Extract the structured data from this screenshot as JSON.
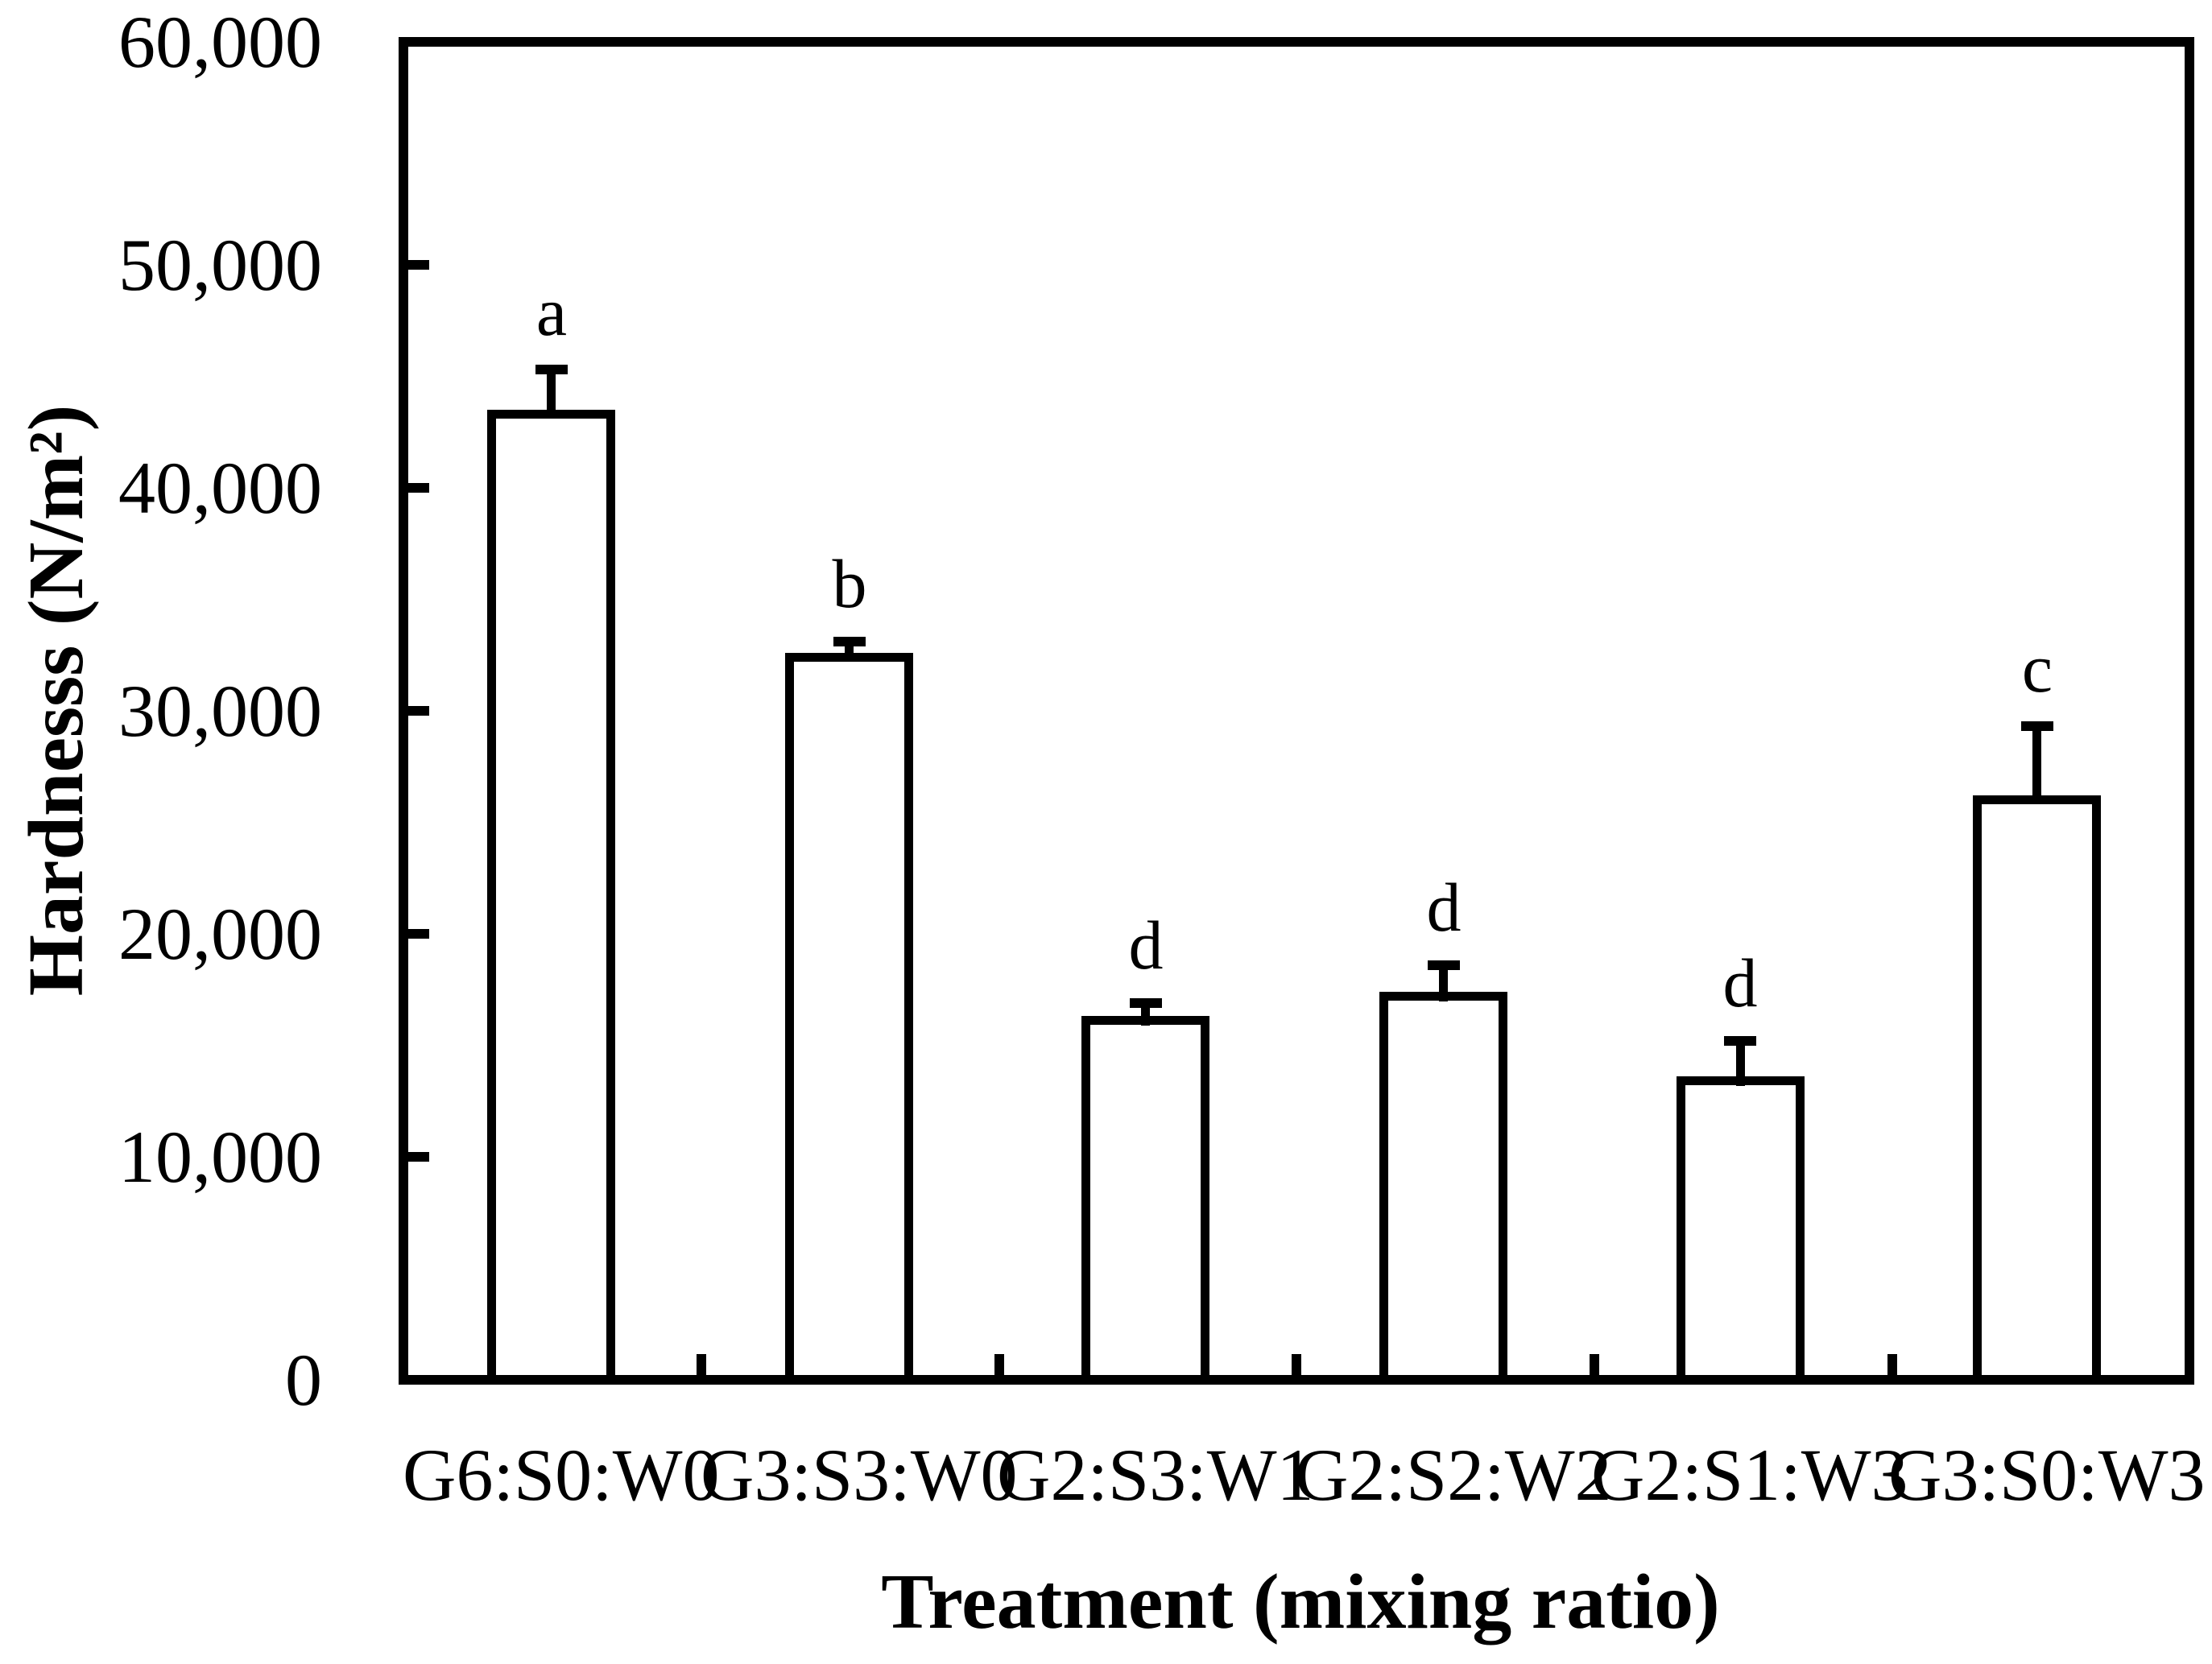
{
  "figure": {
    "background": "#ffffff",
    "ink_color": "#000000"
  },
  "chart_data": {
    "type": "bar",
    "title": "",
    "xlabel": "Treatment (mixing ratio)",
    "ylabel": "Hardnesss (N/m²)",
    "categories": [
      "G6:S0:W0",
      "G3:S3:W0",
      "G2:S3:W1",
      "G2:S2:W2",
      "G2:S1:W3",
      "G3:S0:W3"
    ],
    "values": [
      43300,
      32400,
      16100,
      17200,
      13400,
      26000
    ],
    "error_upper": [
      2000,
      700,
      800,
      1400,
      1800,
      3300
    ],
    "significance_letters": [
      "a",
      "b",
      "d",
      "d",
      "d",
      "c"
    ],
    "ylim": [
      0,
      60000
    ],
    "ytick_step": 10000,
    "ytick_labels": [
      "0",
      "10,000",
      "20,000",
      "30,000",
      "40,000",
      "50,000",
      "60,000"
    ],
    "grid": false,
    "legend": "none",
    "bar_fill": "#ffffff",
    "bar_border": "#000000"
  }
}
